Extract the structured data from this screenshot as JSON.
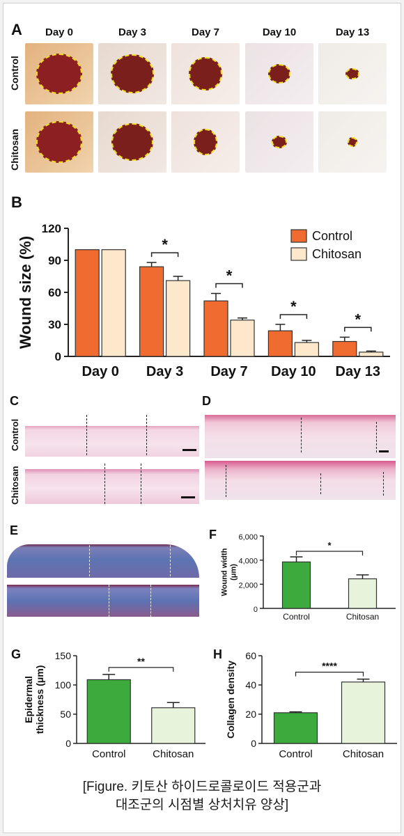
{
  "panel_labels": {
    "A": "A",
    "B": "B",
    "C": "C",
    "D": "D",
    "E": "E",
    "F": "F",
    "G": "G",
    "H": "H"
  },
  "panel_a": {
    "days": [
      "Day 0",
      "Day 3",
      "Day 7",
      "Day 10",
      "Day 13"
    ],
    "rows": [
      "Control",
      "Chitosan"
    ],
    "wound_fill": "#7a1f1c",
    "outline_color": "#f0de20"
  },
  "panel_c": {
    "rows": [
      "Control",
      "Chitosan"
    ]
  },
  "caption": {
    "line1": "[Figure. 키토산 하이드로콜로이드 적용군과",
    "line2": "대조군의 시점별 상처치유 양상]"
  },
  "colors": {
    "control_b": "#ef6b2f",
    "chitosan_b": "#fde8cc",
    "control_fgh": "#3daa3d",
    "chitosan_fgh": "#e8f3dc"
  },
  "chart_data": [
    {
      "id": "B",
      "type": "bar",
      "categories": [
        "Day 0",
        "Day 3",
        "Day 7",
        "Day 10",
        "Day 13"
      ],
      "series": [
        {
          "name": "Control",
          "values": [
            100,
            84,
            52,
            24,
            14
          ],
          "errors": [
            0,
            4,
            7,
            6,
            4
          ]
        },
        {
          "name": "Chitosan",
          "values": [
            100,
            71,
            34,
            13,
            4
          ],
          "errors": [
            0,
            4,
            2,
            2,
            1
          ]
        }
      ],
      "ylabel": "Wound size (%)",
      "xlabel": "",
      "ylim": [
        0,
        120
      ],
      "yticks": [
        0,
        30,
        60,
        90,
        120
      ],
      "significance": [
        "",
        "*",
        "*",
        "*",
        "*"
      ],
      "legend": "top-right"
    },
    {
      "id": "F",
      "type": "bar",
      "categories": [
        "Control",
        "Chitosan"
      ],
      "values": [
        3850,
        2450
      ],
      "errors": [
        420,
        330
      ],
      "ylabel": "Wound width\n(μm)",
      "ylim": [
        0,
        6000
      ],
      "yticks": [
        0,
        2000,
        4000,
        6000
      ],
      "ytick_labels": [
        "0",
        "2,000",
        "4,000",
        "6,000"
      ],
      "significance": "*"
    },
    {
      "id": "G",
      "type": "bar",
      "categories": [
        "Control",
        "Chitosan"
      ],
      "values": [
        109,
        61
      ],
      "errors": [
        9,
        9
      ],
      "ylabel": "Epidermal\nthickness (μm)",
      "ylim": [
        0,
        150
      ],
      "yticks": [
        0,
        50,
        100,
        150
      ],
      "significance": "**"
    },
    {
      "id": "H",
      "type": "bar",
      "categories": [
        "Control",
        "Chitosan"
      ],
      "values": [
        21,
        42
      ],
      "errors": [
        0.6,
        2
      ],
      "ylabel": "Collagen density",
      "ylim": [
        0,
        60
      ],
      "yticks": [
        0,
        20,
        40,
        60
      ],
      "significance": "****"
    }
  ]
}
